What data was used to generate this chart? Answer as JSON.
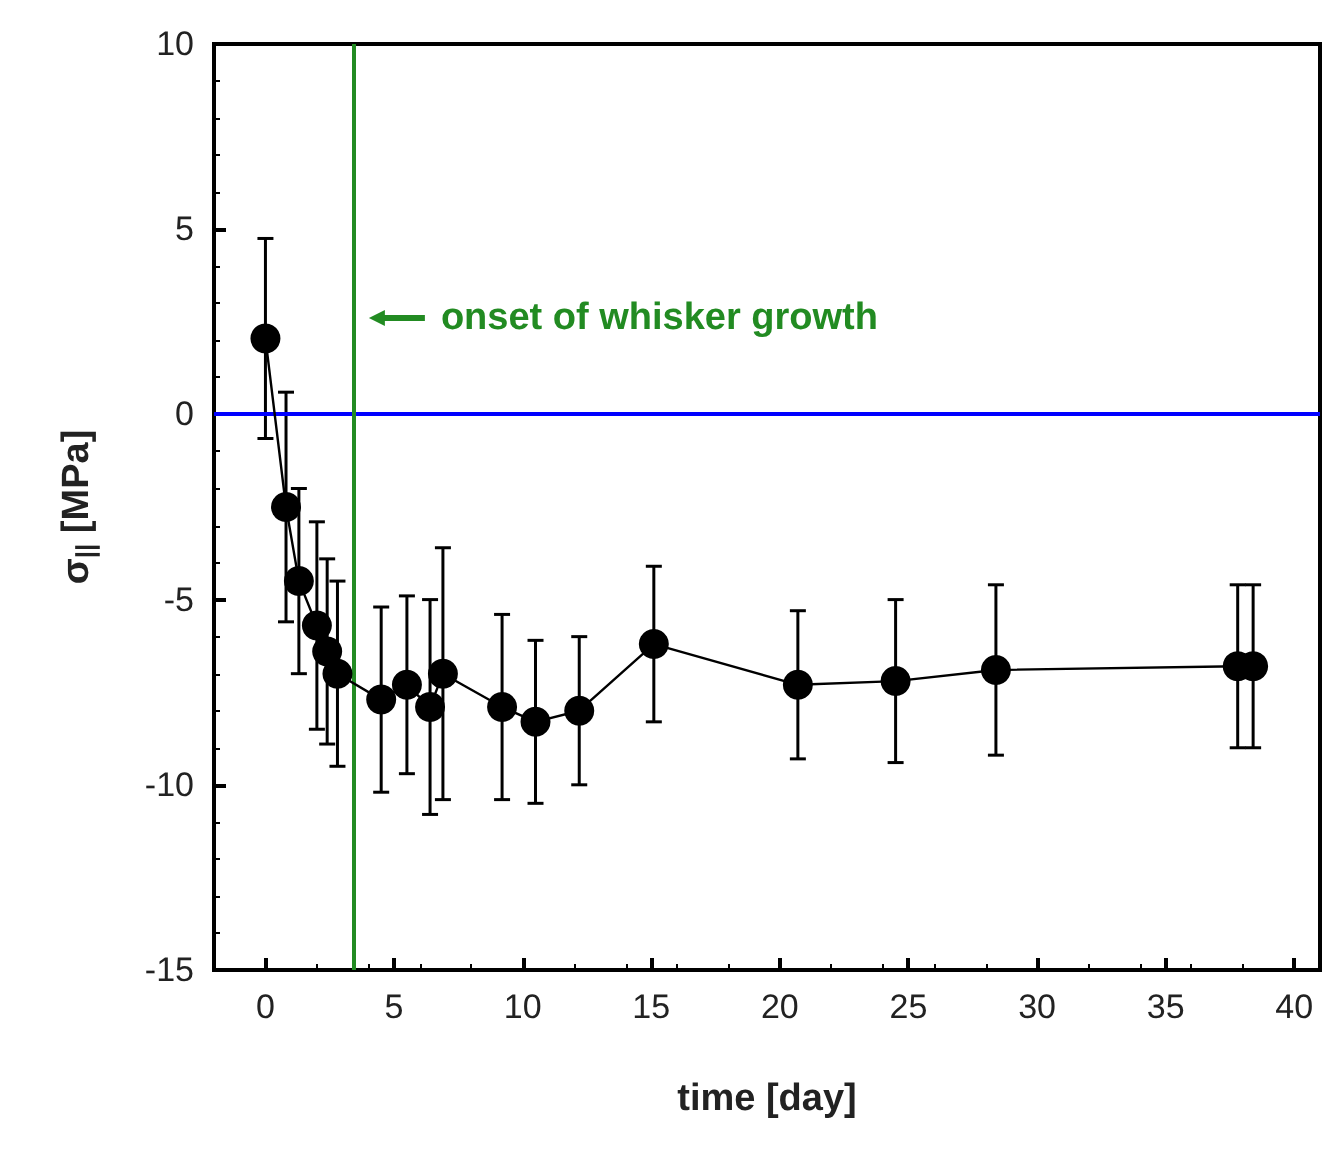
{
  "chart_data": {
    "type": "line",
    "xlabel": "time [day]",
    "ylabel": "σ$_{||}$ [MPa]",
    "x": [
      0,
      0.8,
      1.3,
      2.0,
      2.4,
      2.8,
      4.5,
      5.5,
      6.4,
      6.9,
      9.2,
      10.5,
      12.2,
      15.1,
      20.7,
      24.5,
      28.4,
      37.8,
      38.4
    ],
    "series": [
      {
        "color": "#000000",
        "values": [
          2.05,
          -2.5,
          -4.5,
          -5.7,
          -6.4,
          -7.0,
          -7.7,
          -7.3,
          -7.9,
          -7.0,
          -7.9,
          -8.3,
          -8.0,
          -6.2,
          -7.3,
          -7.2,
          -6.9,
          -6.8,
          -6.8
        ],
        "errors": [
          2.7,
          3.1,
          2.5,
          2.8,
          2.5,
          2.5,
          2.5,
          2.4,
          2.9,
          3.4,
          2.5,
          2.2,
          2.0,
          2.1,
          2.0,
          2.2,
          2.3,
          2.2,
          2.2
        ]
      }
    ],
    "xlim": [
      -2,
      41
    ],
    "xticks": [
      0,
      5,
      10,
      15,
      20,
      25,
      30,
      35,
      40
    ],
    "ylim": [
      -15,
      10
    ],
    "yticks": [
      -15,
      -10,
      -5,
      0,
      5,
      10
    ],
    "ref_lines": [
      {
        "axis": "y",
        "value": 0,
        "color": "#0000ff"
      },
      {
        "axis": "x",
        "value": 3.4,
        "color": "#228b22"
      }
    ],
    "annotations": [
      {
        "text": "onset of whisker growth",
        "x": 3.4,
        "y": 2.6
      }
    ],
    "marker": "circle",
    "line_style": "solid",
    "grid": false
  }
}
